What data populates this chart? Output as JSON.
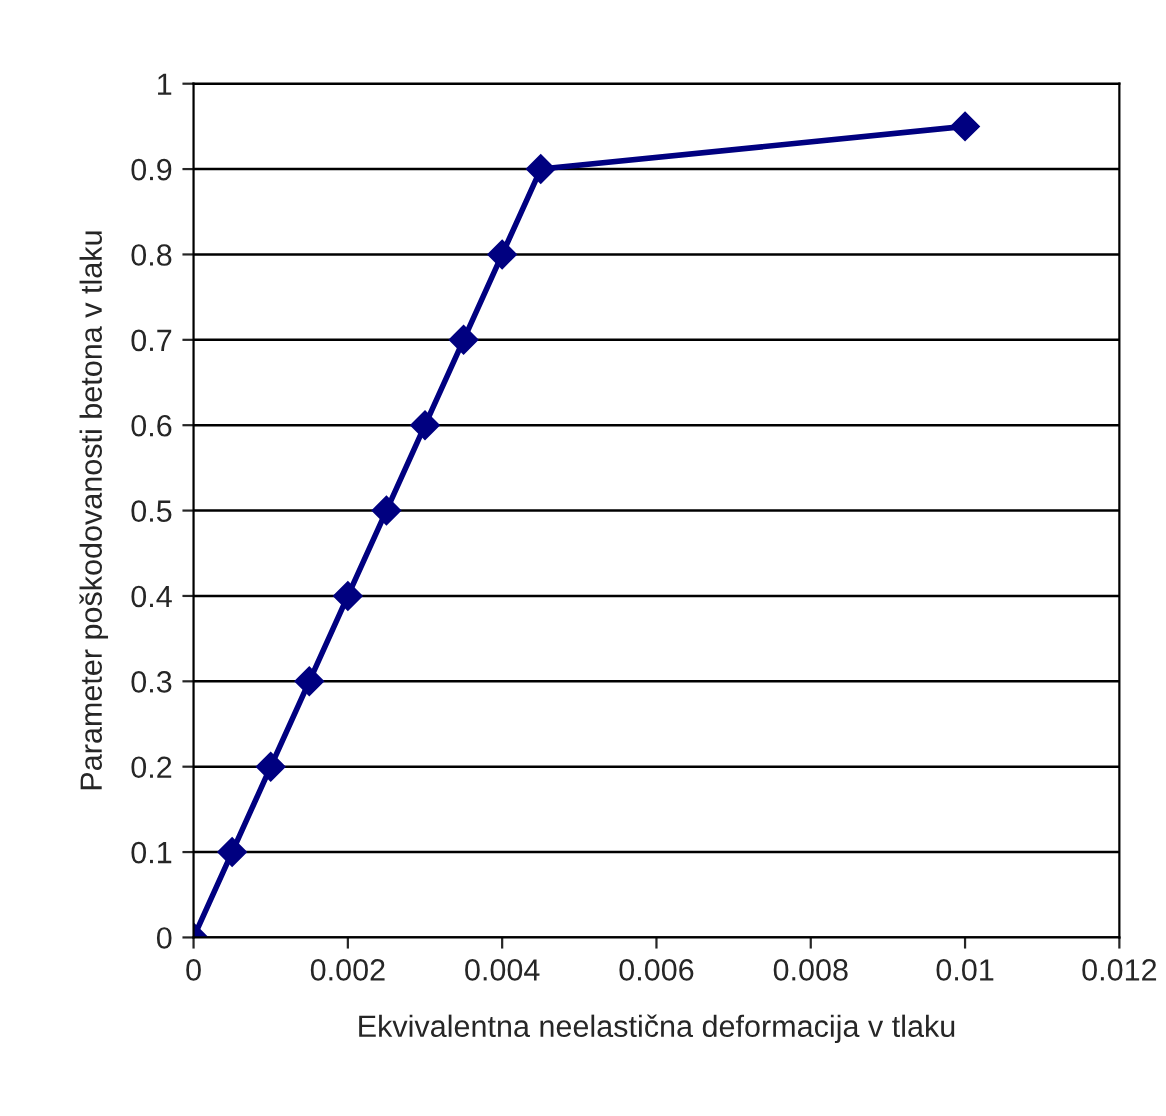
{
  "chart_data": {
    "type": "line",
    "xlabel": "Ekvivalentna neelastična deformacija v tlaku",
    "ylabel": "Parameter poškodovanosti betona v tlaku",
    "x": [
      0,
      0.0005,
      0.001,
      0.0015,
      0.002,
      0.0025,
      0.003,
      0.0035,
      0.004,
      0.0045,
      0.01
    ],
    "series": [
      {
        "color": "#000080",
        "values": [
          0,
          0.1,
          0.2,
          0.3,
          0.4,
          0.5,
          0.6,
          0.7,
          0.8,
          0.9,
          0.95
        ]
      }
    ],
    "xlim": [
      0,
      0.012
    ],
    "xticks": [
      0,
      0.002,
      0.004,
      0.006,
      0.008,
      0.01,
      0.012
    ],
    "ylim": [
      0,
      1
    ],
    "yticks": [
      0,
      0.1,
      0.2,
      0.3,
      0.4,
      0.5,
      0.6,
      0.7,
      0.8,
      0.9,
      1
    ],
    "grid": "y",
    "marker": "diamond",
    "line_style": "solid"
  }
}
